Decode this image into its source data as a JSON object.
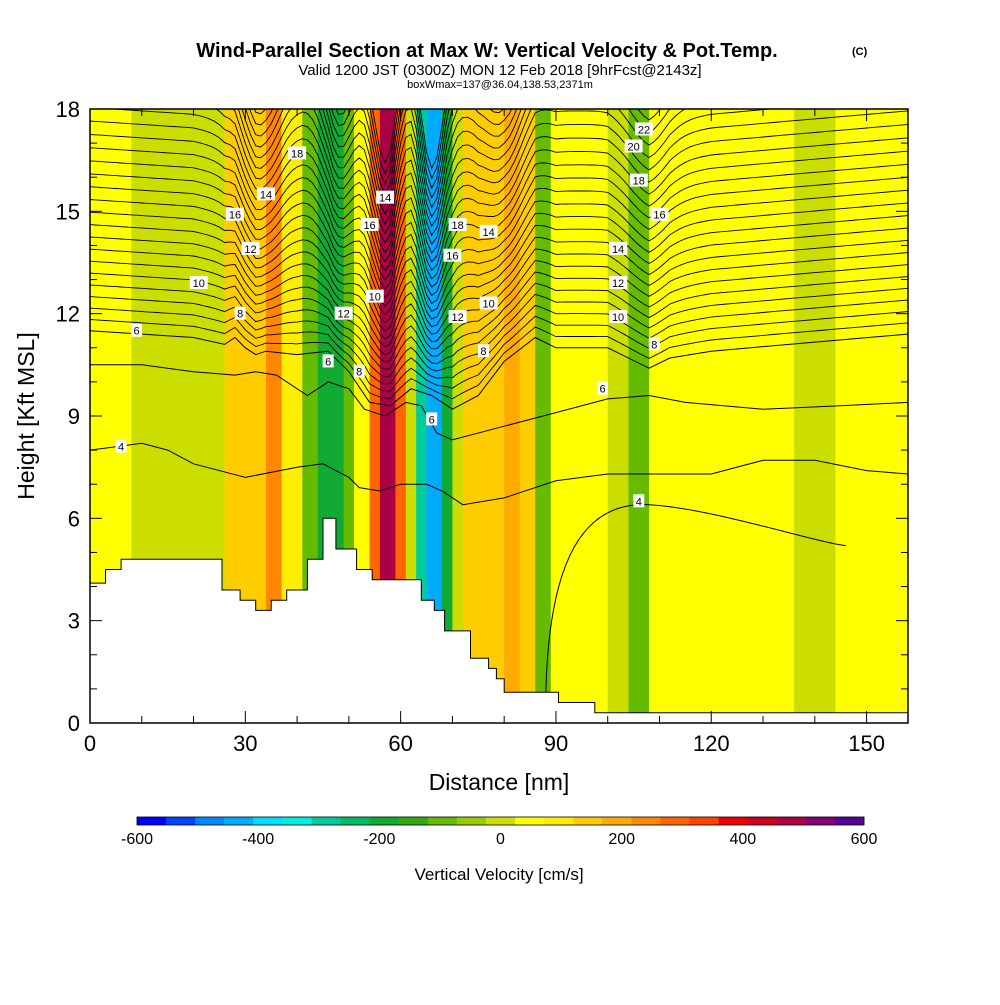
{
  "chart_data": {
    "type": "heatmap",
    "title": "Wind-Parallel Section at Max W: Vertical Velocity & Pot.Temp.",
    "title_mark": "(C)",
    "subtitle": "Valid 1200 JST (0300Z) MON 12 Feb 2018 [9hrFcst@2143z]",
    "subtitle_small": "boxWmax=137@36.04,138.53,2371m",
    "xlabel": "Distance [nm]",
    "ylabel": "Height [Kft MSL]",
    "xlim": [
      0,
      158
    ],
    "ylim": [
      0,
      18
    ],
    "x_ticks": [
      "0",
      "30",
      "60",
      "90",
      "120",
      "150"
    ],
    "y_ticks": [
      "0",
      "3",
      "6",
      "9",
      "12",
      "15",
      "18"
    ],
    "colorbar": {
      "title": "Vertical Velocity [cm/s]",
      "min": -600,
      "max": 600,
      "tick_labels": [
        "-600",
        "-400",
        "-200",
        "0",
        "200",
        "400",
        "600"
      ],
      "colors": [
        "#0000ff",
        "#0044ff",
        "#0088ff",
        "#00aaff",
        "#00ddff",
        "#00eedd",
        "#00cc99",
        "#00bb66",
        "#11aa33",
        "#33aa11",
        "#66bb00",
        "#99cc00",
        "#ccdd00",
        "#ffff00",
        "#ffee00",
        "#ffcc00",
        "#ffaa00",
        "#ff8800",
        "#ff6600",
        "#ff4400",
        "#ee0000",
        "#cc0022",
        "#aa0044",
        "#880077",
        "#550099"
      ]
    },
    "velocity_bands": [
      {
        "x0": 0,
        "x1": 3,
        "w": 40
      },
      {
        "x0": 3,
        "x1": 8,
        "w": 60
      },
      {
        "x0": 8,
        "x1": 26,
        "w": 20
      },
      {
        "x0": 26,
        "x1": 34,
        "w": 150
      },
      {
        "x0": 34,
        "x1": 37,
        "w": 250
      },
      {
        "x0": 37,
        "x1": 41,
        "w": 80
      },
      {
        "x0": 41,
        "x1": 44,
        "w": -120
      },
      {
        "x0": 44,
        "x1": 49,
        "w": -190
      },
      {
        "x0": 49,
        "x1": 51,
        "w": -110
      },
      {
        "x0": 51,
        "x1": 54,
        "w": 60
      },
      {
        "x0": 54,
        "x1": 56,
        "w": 300
      },
      {
        "x0": 56,
        "x1": 59,
        "w": 480
      },
      {
        "x0": 59,
        "x1": 61,
        "w": 280
      },
      {
        "x0": 61,
        "x1": 63,
        "w": 0
      },
      {
        "x0": 63,
        "x1": 65,
        "w": -280
      },
      {
        "x0": 65,
        "x1": 68,
        "w": -440
      },
      {
        "x0": 68,
        "x1": 70,
        "w": -190
      },
      {
        "x0": 70,
        "x1": 72,
        "w": 20
      },
      {
        "x0": 72,
        "x1": 80,
        "w": 150
      },
      {
        "x0": 80,
        "x1": 83,
        "w": 210
      },
      {
        "x0": 83,
        "x1": 86,
        "w": 120
      },
      {
        "x0": 86,
        "x1": 89,
        "w": -90
      },
      {
        "x0": 89,
        "x1": 100,
        "w": 30
      },
      {
        "x0": 100,
        "x1": 104,
        "w": 10
      },
      {
        "x0": 104,
        "x1": 108,
        "w": -110
      },
      {
        "x0": 108,
        "x1": 120,
        "w": 40
      },
      {
        "x0": 120,
        "x1": 136,
        "w": 50
      },
      {
        "x0": 136,
        "x1": 144,
        "w": 10
      },
      {
        "x0": 144,
        "x1": 158,
        "w": 30
      }
    ],
    "terrain": {
      "x": [
        0,
        3,
        3,
        6,
        6,
        25.5,
        25.5,
        29,
        29,
        32,
        32,
        35,
        35,
        38,
        38,
        42,
        42,
        45,
        45,
        47.5,
        47.5,
        51.5,
        51.5,
        54.5,
        54.5,
        64,
        64,
        66.5,
        66.5,
        68.5,
        68.5,
        73.5,
        73.5,
        77,
        77,
        78.5,
        78.5,
        80,
        80,
        90.5,
        90.5,
        97.5,
        97.5,
        158
      ],
      "h": [
        4.1,
        4.1,
        4.5,
        4.5,
        4.8,
        4.8,
        3.9,
        3.9,
        3.6,
        3.6,
        3.3,
        3.3,
        3.6,
        3.6,
        3.9,
        3.9,
        4.8,
        4.8,
        6.0,
        6.0,
        5.1,
        5.1,
        4.5,
        4.5,
        4.2,
        4.2,
        3.6,
        3.6,
        3.3,
        3.3,
        2.7,
        2.7,
        1.9,
        1.9,
        1.6,
        1.6,
        1.3,
        1.3,
        0.9,
        0.9,
        0.6,
        0.6,
        0.3,
        0.3
      ]
    },
    "theta_contours": [
      {
        "value": "4",
        "x": [
          0,
          5,
          10,
          15,
          20,
          30,
          40,
          45,
          50,
          52,
          56,
          60,
          65,
          68,
          72,
          80,
          90,
          100,
          110,
          120,
          130,
          140,
          150,
          158
        ],
        "h": [
          8.0,
          8.1,
          8.2,
          8.0,
          7.6,
          7.2,
          7.5,
          7.6,
          7.2,
          6.9,
          6.8,
          7.0,
          7.0,
          6.8,
          6.4,
          6.6,
          7.1,
          7.3,
          7.3,
          7.3,
          7.7,
          7.7,
          7.4,
          7.3
        ]
      },
      {
        "value": "6",
        "x": [
          0,
          10,
          20,
          28,
          32,
          36,
          42,
          46,
          50,
          53,
          57,
          61,
          64,
          67,
          70,
          80,
          90,
          100,
          108,
          115,
          130,
          145,
          158
        ],
        "h": [
          10.5,
          10.5,
          10.3,
          10.2,
          10.3,
          10.2,
          9.6,
          10.0,
          9.8,
          9.2,
          9.0,
          9.4,
          9.3,
          8.5,
          8.3,
          8.7,
          9.1,
          9.5,
          9.6,
          9.4,
          9.2,
          9.3,
          9.4
        ]
      },
      {
        "value": "8",
        "x": [
          0,
          10,
          20,
          26,
          28,
          30,
          32,
          34,
          40,
          46,
          50,
          54,
          58,
          62,
          66,
          70,
          75,
          80,
          86,
          90,
          100,
          108,
          112,
          120,
          135,
          158
        ],
        "h": [
          11.5,
          11.4,
          11.3,
          11.1,
          11.3,
          11.0,
          10.8,
          10.9,
          10.8,
          10.9,
          10.3,
          9.4,
          9.3,
          9.8,
          9.6,
          9.2,
          9.6,
          10.6,
          11.3,
          11.0,
          11.0,
          10.4,
          10.7,
          10.9,
          11.1,
          11.4
        ]
      }
    ],
    "contour_labels": [
      {
        "text": "4",
        "x": 6,
        "h": 8.1
      },
      {
        "text": "4",
        "x": 106,
        "h": 6.5
      },
      {
        "text": "6",
        "x": 9,
        "h": 11.5
      },
      {
        "text": "6",
        "x": 46,
        "h": 10.6
      },
      {
        "text": "6",
        "x": 66,
        "h": 8.9
      },
      {
        "text": "6",
        "x": 99,
        "h": 9.8
      },
      {
        "text": "8",
        "x": 29,
        "h": 12.0
      },
      {
        "text": "8",
        "x": 52,
        "h": 10.3
      },
      {
        "text": "8",
        "x": 76,
        "h": 10.9
      },
      {
        "text": "8",
        "x": 109,
        "h": 11.1
      },
      {
        "text": "10",
        "x": 21,
        "h": 12.9
      },
      {
        "text": "10",
        "x": 55,
        "h": 12.5
      },
      {
        "text": "10",
        "x": 77,
        "h": 12.3
      },
      {
        "text": "10",
        "x": 102,
        "h": 11.9
      },
      {
        "text": "12",
        "x": 31,
        "h": 13.9
      },
      {
        "text": "12",
        "x": 49,
        "h": 12.0
      },
      {
        "text": "12",
        "x": 71,
        "h": 11.9
      },
      {
        "text": "12",
        "x": 102,
        "h": 12.9
      },
      {
        "text": "14",
        "x": 34,
        "h": 15.5
      },
      {
        "text": "14",
        "x": 57,
        "h": 15.4
      },
      {
        "text": "14",
        "x": 77,
        "h": 14.4
      },
      {
        "text": "14",
        "x": 102,
        "h": 13.9
      },
      {
        "text": "16",
        "x": 28,
        "h": 14.9
      },
      {
        "text": "16",
        "x": 54,
        "h": 14.6
      },
      {
        "text": "16",
        "x": 70,
        "h": 13.7
      },
      {
        "text": "16",
        "x": 110,
        "h": 14.9
      },
      {
        "text": "18",
        "x": 40,
        "h": 16.7
      },
      {
        "text": "18",
        "x": 71,
        "h": 14.6
      },
      {
        "text": "18",
        "x": 106,
        "h": 15.9
      },
      {
        "text": "20",
        "x": 105,
        "h": 16.9
      },
      {
        "text": "22",
        "x": 107,
        "h": 17.4
      }
    ]
  }
}
